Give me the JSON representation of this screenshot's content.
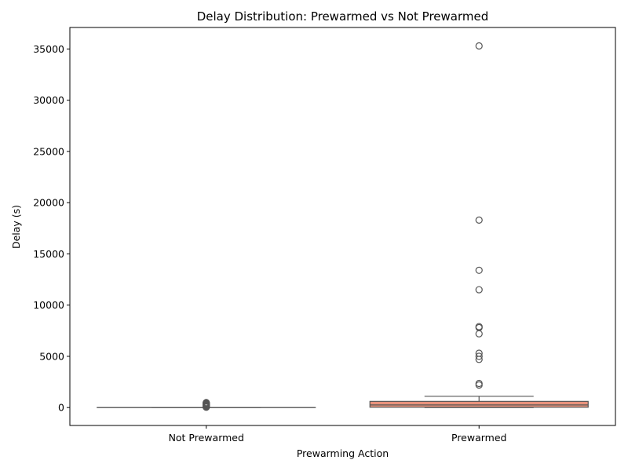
{
  "chart_data": {
    "type": "box",
    "title": "Delay Distribution: Prewarmed vs Not Prewarmed",
    "xlabel": "Prewarming Action",
    "ylabel": "Delay (s)",
    "categories": [
      "Not Prewarmed",
      "Prewarmed"
    ],
    "ylim": [
      -1750,
      37100
    ],
    "yticks": [
      0,
      5000,
      10000,
      15000,
      20000,
      25000,
      30000,
      35000
    ],
    "grid": false,
    "legend": "none",
    "boxes": [
      {
        "category": "Not Prewarmed",
        "color": "#ffffff",
        "whisker_low": 0,
        "q1": 0,
        "median": 0,
        "q3": 0,
        "whisker_high": 0,
        "outliers": [
          30,
          60,
          90,
          120,
          150,
          180,
          210,
          240,
          270,
          300,
          330,
          360,
          390,
          420,
          450,
          480
        ]
      },
      {
        "category": "Prewarmed",
        "color": "#e8927c",
        "whisker_low": 0,
        "q1": 30,
        "median": 250,
        "q3": 600,
        "whisker_high": 1100,
        "outliers": [
          2200,
          2350,
          4700,
          5000,
          5300,
          7200,
          7800,
          7900,
          11500,
          13400,
          18300,
          35300
        ]
      }
    ]
  }
}
